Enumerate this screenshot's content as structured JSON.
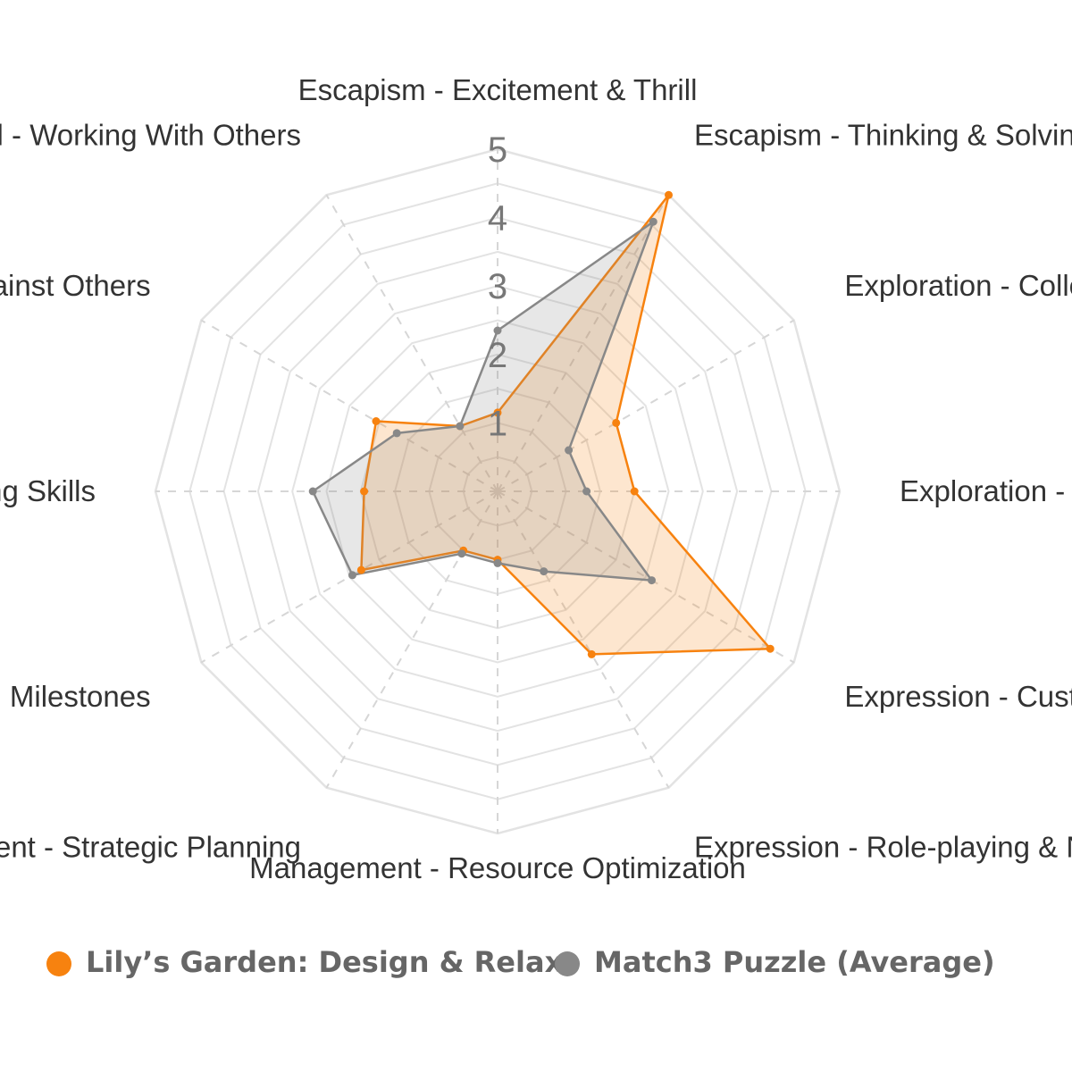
{
  "chart_data": {
    "type": "radar",
    "axes": [
      "Escapism - Excitement & Thrill",
      "Escapism - Thinking & Solving",
      "Exploration - Collecting",
      "Exploration - Discovery",
      "Expression - Customization",
      "Expression - Role-playing & Narrative",
      "Management - Resource Optimization",
      "Management - Strategic Planning",
      "Mastery - Reaching Milestones",
      "Mastery - Problem Solving Skills",
      "Social - Playing Against Others",
      "Social - Working With Others"
    ],
    "ticks": [
      "1",
      "2",
      "3",
      "4",
      "5"
    ],
    "rmax": 5,
    "series": [
      {
        "name": "Lily’s Garden: Design & Relax",
        "color": "#f7820f",
        "values": [
          1.15,
          5.0,
          2.0,
          2.0,
          4.6,
          2.75,
          1.0,
          1.0,
          2.3,
          1.95,
          2.05,
          1.1
        ]
      },
      {
        "name": "Match3 Puzzle (Average)",
        "color": "#888888",
        "values": [
          2.35,
          4.55,
          1.2,
          1.3,
          2.6,
          1.35,
          1.05,
          1.05,
          2.45,
          2.7,
          1.7,
          1.1
        ]
      }
    ],
    "grid": true,
    "legend_position": "bottom"
  }
}
